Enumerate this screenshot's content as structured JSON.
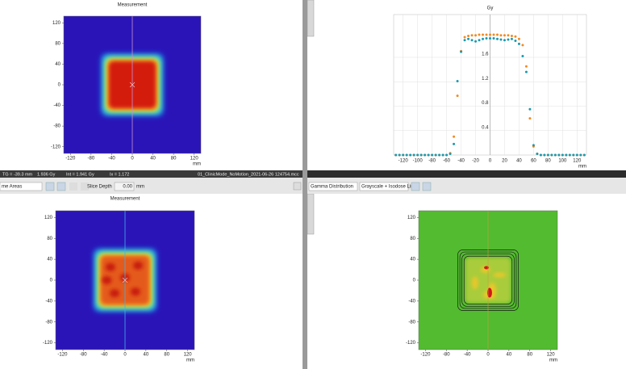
{
  "top_left": {
    "title": "Measurement",
    "x_unit": "mm",
    "xlim": [
      -133,
      133
    ],
    "ylim": [
      -133,
      133
    ],
    "xticks": [
      -120,
      -80,
      -40,
      0,
      40,
      80,
      120
    ],
    "yticks": [
      120,
      80,
      40,
      0,
      -40,
      -80,
      -120
    ]
  },
  "status_bar": [
    "TG = -39.3 mm",
    "1.936 Gy",
    "Int = 1.941 Gy",
    "Ix = 1.172",
    "01_ClinicMode_NoMotion_2021-06-26 124754.mcc"
  ],
  "toolbar": {
    "areas": "me Areas",
    "slice_depth_label": "Slice Depth",
    "slice_depth": "0.00",
    "slice_unit": "mm",
    "gamma": "Gamma Distribution",
    "display": "Grayscale + Isodose Lin"
  },
  "profile": {
    "type": "scatter",
    "title": "Gy",
    "x_label": "mm",
    "grid": true,
    "xlim": [
      -133,
      133
    ],
    "ylim": [
      0,
      2.3
    ],
    "xticks": [
      -120,
      -100,
      -80,
      -60,
      -40,
      -20,
      0,
      20,
      40,
      60,
      80,
      100,
      120
    ],
    "yticks": [
      0.4,
      0.8,
      1.2,
      1.6
    ],
    "x": [
      -130,
      -125,
      -120,
      -115,
      -110,
      -105,
      -100,
      -95,
      -90,
      -85,
      -80,
      -75,
      -70,
      -65,
      -60,
      -55,
      -50,
      -45,
      -40,
      -35,
      -30,
      -25,
      -20,
      -15,
      -10,
      -5,
      0,
      5,
      10,
      15,
      20,
      25,
      30,
      35,
      40,
      45,
      50,
      55,
      60,
      65,
      70,
      75,
      80,
      85,
      90,
      95,
      100,
      105,
      110,
      115,
      120,
      125,
      130
    ],
    "series": [
      {
        "color": "#f08a24",
        "values": [
          0,
          0,
          0,
          0,
          0,
          0,
          0,
          0,
          0,
          0,
          0,
          0,
          0,
          0,
          0,
          0.03,
          0.3,
          0.97,
          1.7,
          1.93,
          1.95,
          1.96,
          1.96,
          1.97,
          1.97,
          1.97,
          1.97,
          1.97,
          1.97,
          1.96,
          1.96,
          1.96,
          1.95,
          1.94,
          1.9,
          1.8,
          1.45,
          0.6,
          0.14,
          0.02,
          0,
          0,
          0,
          0,
          0,
          0,
          0,
          0,
          0,
          0,
          0,
          0,
          0
        ]
      },
      {
        "color": "#1a9ab0",
        "values": [
          0,
          0,
          0,
          0,
          0,
          0,
          0,
          0,
          0,
          0,
          0,
          0,
          0,
          0,
          0,
          0.02,
          0.18,
          1.21,
          1.69,
          1.88,
          1.9,
          1.88,
          1.86,
          1.88,
          1.9,
          1.91,
          1.91,
          1.91,
          1.9,
          1.89,
          1.88,
          1.89,
          1.9,
          1.87,
          1.82,
          1.62,
          1.36,
          0.75,
          0.16,
          0.02,
          0,
          0,
          0,
          0,
          0,
          0,
          0,
          0,
          0,
          0,
          0,
          0,
          0
        ]
      }
    ]
  },
  "bottom_left": {
    "title": "Measurement",
    "x_unit": "mm",
    "xlim": [
      -133,
      133
    ],
    "ylim": [
      -133,
      133
    ],
    "xticks": [
      -120,
      -80,
      -40,
      0,
      40,
      80,
      120
    ],
    "yticks": [
      120,
      80,
      40,
      0,
      -40,
      -80,
      -120
    ]
  },
  "gamma": {
    "x_unit": "mm",
    "xlim": [
      -133,
      133
    ],
    "ylim": [
      -133,
      133
    ],
    "xticks": [
      -120,
      -80,
      -40,
      0,
      40,
      80,
      120
    ],
    "yticks": [
      120,
      80,
      40,
      0,
      -40,
      -80,
      -120
    ]
  }
}
